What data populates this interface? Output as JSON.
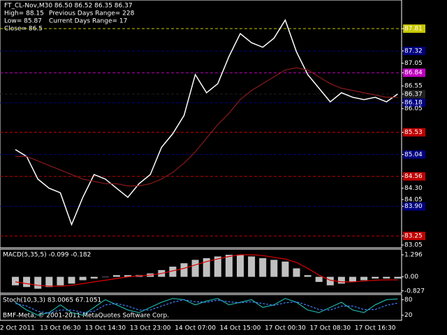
{
  "chart_data": [
    {
      "type": "line",
      "title": "FT_CL-Nov,M30  86.50 86.52 86.35 86.37",
      "annotations": [
        "High= 88.15",
        "Previous Days Range= 228",
        "Low= 85.87",
        "Current Days Range= 17",
        "Close= 86.5"
      ],
      "ylim": [
        82.99,
        88.44
      ],
      "yticks": [
        87.81,
        87.32,
        87.05,
        86.84,
        86.55,
        86.37,
        86.18,
        86.05,
        85.53,
        85.04,
        84.56,
        {
          "value": 84.3,
          "label": "84.30"
        },
        84.05,
        {
          "value": 83.9,
          "label": "83.90"
        },
        83.25,
        83.05
      ],
      "ytick_colors": [
        "#c8c800",
        "#000080",
        null,
        "#c000c0",
        null,
        "#202020",
        "#000080",
        null,
        "#c00000",
        "#000080",
        "#c00000",
        null,
        null,
        "#000080",
        "#c00000",
        null
      ],
      "series": [
        {
          "color": "#ffffff",
          "values": [
            85.15,
            85.0,
            84.5,
            84.3,
            84.2,
            83.5,
            84.1,
            84.6,
            84.5,
            84.3,
            84.1,
            84.4,
            84.6,
            85.2,
            85.5,
            85.9,
            86.8,
            86.4,
            86.6,
            87.2,
            87.7,
            87.5,
            87.4,
            87.6,
            88.0,
            87.3,
            86.8,
            86.5,
            86.2,
            86.4,
            86.3,
            86.25,
            86.3,
            86.2,
            86.37
          ]
        },
        {
          "color": "#8b1a1a",
          "values": [
            85.0,
            85.0,
            84.9,
            84.8,
            84.7,
            84.6,
            84.5,
            84.45,
            84.4,
            84.4,
            84.35,
            84.35,
            84.4,
            84.5,
            84.65,
            84.85,
            85.1,
            85.4,
            85.7,
            85.95,
            86.25,
            86.45,
            86.6,
            86.75,
            86.9,
            86.95,
            86.9,
            86.75,
            86.6,
            86.5,
            86.45,
            86.4,
            86.35,
            86.3,
            86.3
          ]
        }
      ]
    },
    {
      "type": "bar",
      "title": "MACD(5,35,5) -0.099 -0.182",
      "ylim": [
        -0.96,
        1.63
      ],
      "yticks": [
        1.296,
        {
          "value": 0,
          "label": "0.00"
        },
        -0.827
      ],
      "series": [
        {
          "color": "#c0c0c0",
          "values": [
            -0.5,
            -0.6,
            -0.7,
            -0.6,
            -0.5,
            -0.4,
            -0.2,
            -0.1,
            0,
            0.1,
            0.1,
            0.1,
            0.2,
            0.4,
            0.6,
            0.8,
            1.0,
            1.1,
            1.2,
            1.3,
            1.3,
            1.2,
            1.1,
            1.0,
            0.9,
            0.5,
            0.1,
            -0.3,
            -0.5,
            -0.4,
            -0.3,
            -0.2,
            -0.1,
            -0.1,
            -0.1
          ]
        },
        {
          "type": "line",
          "color": "#e00000",
          "values": [
            -0.3,
            -0.4,
            -0.5,
            -0.55,
            -0.55,
            -0.5,
            -0.4,
            -0.3,
            -0.2,
            -0.1,
            0,
            0.05,
            0.1,
            0.2,
            0.35,
            0.5,
            0.7,
            0.9,
            1.05,
            1.2,
            1.3,
            1.3,
            1.25,
            1.15,
            1.05,
            0.85,
            0.5,
            0.1,
            -0.2,
            -0.3,
            -0.3,
            -0.25,
            -0.2,
            -0.18,
            -0.18
          ]
        }
      ]
    },
    {
      "type": "line",
      "title": "Stoch(10,3,3) 83.0065 67.1051",
      "annotations": [
        "BMF-Meta, © 2001-2011 MetaQuotes Software Corp."
      ],
      "ylim": [
        0,
        100
      ],
      "yticks": [
        80,
        20
      ],
      "categories": [
        "12 Oct 2011",
        null,
        null,
        null,
        "13 Oct 06:30",
        null,
        null,
        null,
        "13 Oct 14:30",
        null,
        null,
        null,
        "13 Oct 23:00",
        null,
        null,
        null,
        "14 Oct 07:00",
        null,
        null,
        null,
        "14 Oct 15:00",
        null,
        null,
        null,
        "17 Oct 00:30",
        null,
        null,
        null,
        "17 Oct 08:30",
        null,
        null,
        null,
        "17 Oct 16:30",
        null,
        null
      ],
      "series": [
        {
          "color": "#20b2aa",
          "values": [
            70,
            40,
            20,
            30,
            60,
            30,
            20,
            50,
            80,
            60,
            40,
            30,
            50,
            70,
            85,
            80,
            60,
            75,
            85,
            60,
            70,
            80,
            50,
            60,
            85,
            70,
            40,
            30,
            50,
            70,
            40,
            30,
            60,
            80,
            83
          ]
        },
        {
          "color": "#4080ff",
          "values": [
            65,
            55,
            35,
            28,
            40,
            40,
            30,
            35,
            60,
            65,
            55,
            40,
            40,
            55,
            70,
            80,
            72,
            70,
            78,
            72,
            68,
            72,
            65,
            58,
            68,
            72,
            58,
            42,
            40,
            55,
            55,
            42,
            42,
            58,
            67
          ]
        }
      ]
    }
  ]
}
